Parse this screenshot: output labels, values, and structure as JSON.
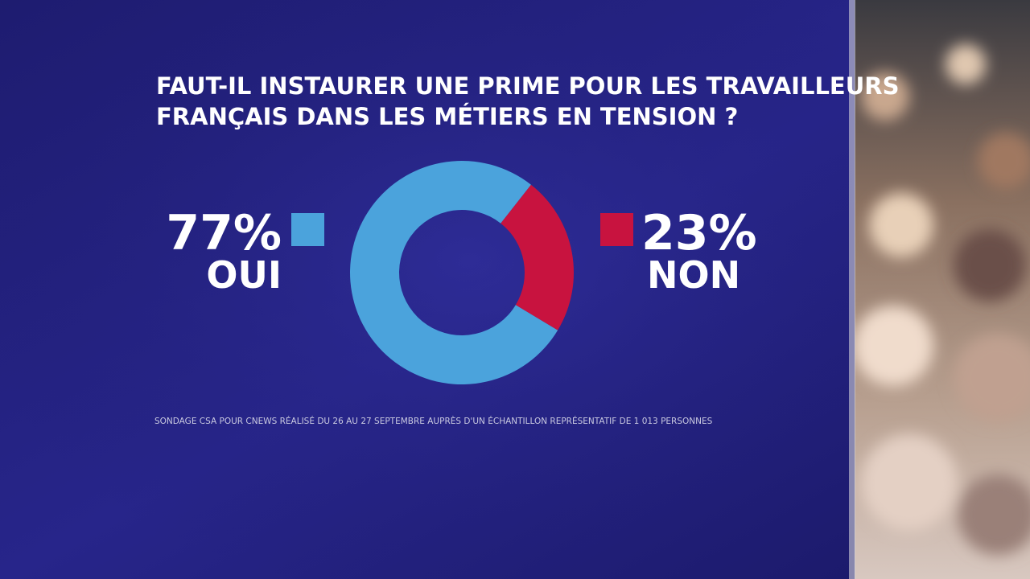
{
  "chart_data": {
    "type": "pie",
    "title": [
      "FAUT-IL INSTAURER UNE PRIME POUR LES TRAVAILLEURS",
      "FRANÇAIS DANS LES MÉTIERS EN TENSION ?"
    ],
    "categories": [
      "OUI",
      "NON"
    ],
    "values": [
      77,
      23
    ],
    "value_labels": [
      "77%",
      "23%"
    ],
    "colors": [
      "#4ba3dc",
      "#c8133f"
    ],
    "donut": true,
    "note": "SONDAGE CSA POUR CNEWS RÉALISÉ DU 26 AU 27 SEPTEMBRE AUPRÈS D'UN ÉCHANTILLON REPRÉSENTATIF DE 1 013 PERSONNES"
  }
}
